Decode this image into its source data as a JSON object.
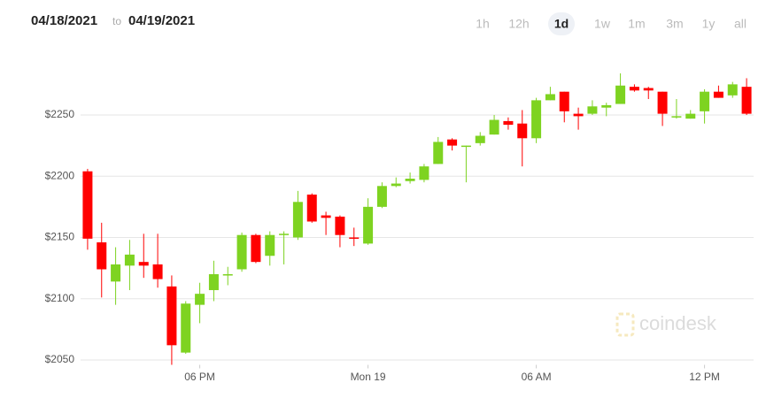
{
  "header": {
    "start_date": "04/18/2021",
    "separator": "to",
    "end_date": "04/19/2021",
    "ranges": [
      "1h",
      "12h",
      "1d",
      "1w",
      "1m",
      "3m",
      "1y",
      "all"
    ],
    "selected_range": "1d"
  },
  "watermark": "coindesk",
  "chart_data": {
    "type": "candlestick",
    "categories": [
      null,
      null,
      null,
      null,
      null,
      null,
      null,
      null,
      "06 PM",
      null,
      null,
      null,
      null,
      null,
      null,
      null,
      null,
      null,
      null,
      null,
      "Mon 19",
      null,
      null,
      null,
      null,
      null,
      null,
      null,
      null,
      null,
      null,
      null,
      "06 AM",
      null,
      null,
      null,
      null,
      null,
      null,
      null,
      null,
      null,
      null,
      null,
      "12 PM",
      null,
      null,
      null
    ],
    "open": [
      2204,
      2146,
      2114,
      2127,
      2130,
      2128,
      2110,
      2056,
      2095,
      2107,
      2119,
      2124,
      2152,
      2135,
      2152,
      2150,
      2185,
      2168,
      2167,
      2150,
      2145,
      2175,
      2192,
      2196,
      2197,
      2210,
      2230,
      2224,
      2227,
      2234,
      2245,
      2243,
      2231,
      2262,
      2269,
      2251,
      2251,
      2256,
      2259,
      2273,
      2272,
      2269,
      2248,
      2247,
      2253,
      2269,
      2266,
      2273
    ],
    "high": [
      2206,
      2162,
      2142,
      2148,
      2153,
      2153,
      2119,
      2098,
      2113,
      2131,
      2126,
      2154,
      2153,
      2155,
      2155,
      2188,
      2186,
      2171,
      2168,
      2158,
      2182,
      2195,
      2199,
      2203,
      2210,
      2232,
      2231,
      2225,
      2236,
      2250,
      2248,
      2254,
      2264,
      2273,
      2269,
      2256,
      2262,
      2260,
      2284,
      2275,
      2273,
      2269,
      2263,
      2254,
      2271,
      2274,
      2277,
      2280
    ],
    "low": [
      2140,
      2101,
      2095,
      2107,
      2117,
      2109,
      2046,
      2055,
      2080,
      2098,
      2111,
      2122,
      2129,
      2127,
      2128,
      2148,
      2162,
      2152,
      2142,
      2143,
      2144,
      2174,
      2191,
      2194,
      2195,
      2210,
      2221,
      2195,
      2225,
      2234,
      2238,
      2208,
      2227,
      2262,
      2244,
      2238,
      2250,
      2249,
      2259,
      2269,
      2263,
      2241,
      2247,
      2247,
      2243,
      2264,
      2264,
      2250
    ],
    "close": [
      2149,
      2124,
      2128,
      2136,
      2127,
      2116,
      2062,
      2096,
      2104,
      2120,
      2120,
      2152,
      2130,
      2152,
      2153,
      2179,
      2163,
      2166,
      2152,
      2149,
      2175,
      2192,
      2194,
      2198,
      2208,
      2228,
      2225,
      2225,
      2233,
      2246,
      2242,
      2231,
      2262,
      2267,
      2253,
      2249,
      2257,
      2258,
      2274,
      2270,
      2270,
      2251,
      2249,
      2251,
      2269,
      2264,
      2275,
      2251
    ],
    "up_color": "#7ed321",
    "down_color": "#ff0000",
    "ylim": [
      2046,
      2300
    ],
    "yticks": [
      {
        "value": 2050,
        "label": "$2050"
      },
      {
        "value": 2100,
        "label": "$2100"
      },
      {
        "value": 2150,
        "label": "$2150"
      },
      {
        "value": 2200,
        "label": "$2200"
      },
      {
        "value": 2250,
        "label": "$2250"
      }
    ],
    "grid": true
  }
}
